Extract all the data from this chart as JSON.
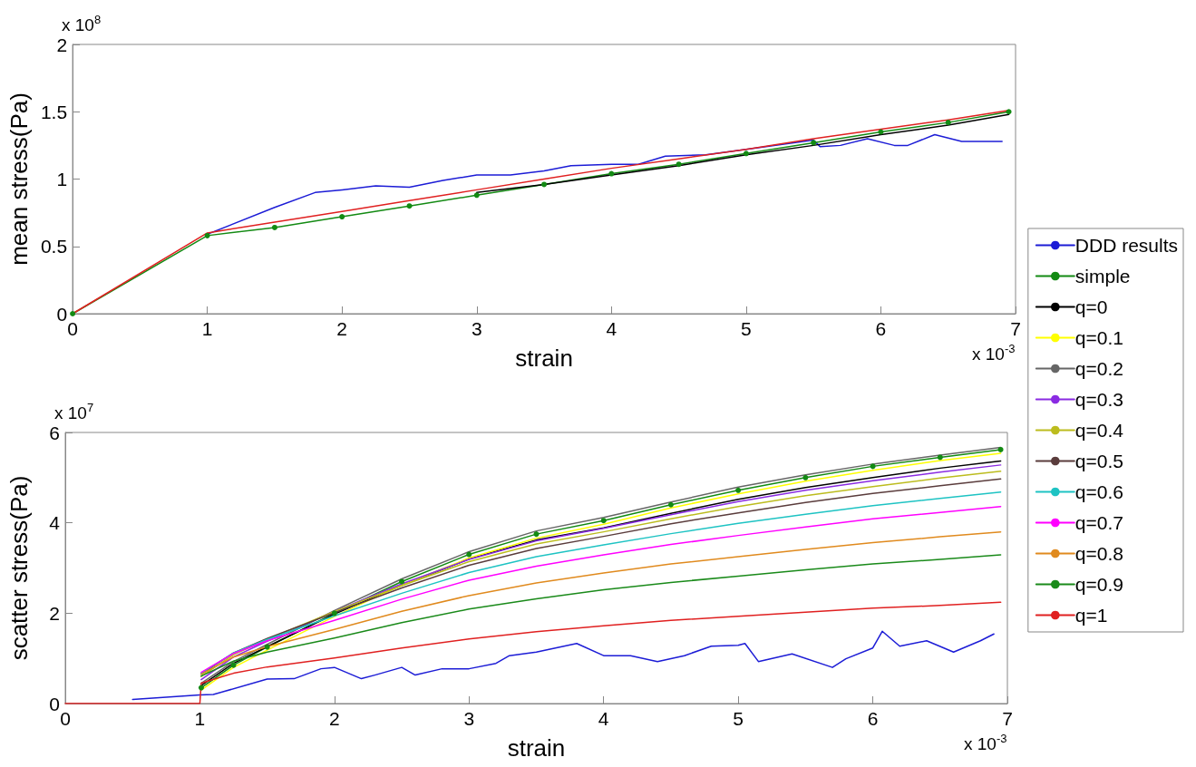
{
  "chart_data": [
    {
      "type": "line",
      "xlabel": "strain",
      "ylabel": "mean stress(Pa)",
      "annotations": [
        "x 10$^{8}$",
        "x 10$^{-3}$"
      ],
      "xlim": [
        0,
        7
      ],
      "xticks": [
        0,
        1,
        2,
        3,
        4,
        5,
        6,
        7
      ],
      "ylim": [
        0,
        2
      ],
      "yticks": [
        0,
        0.5,
        1,
        1.5,
        2
      ],
      "grid": false,
      "legend": "right",
      "marker": "none",
      "line_style": "solid",
      "x": [
        0,
        1,
        1.5,
        2,
        2.5,
        3,
        3.5,
        4,
        4.5,
        5,
        5.5,
        6,
        6.5,
        6.95
      ],
      "series": [
        {
          "name": "DDD results",
          "color": "#1c1cd6",
          "x": [
            1,
            1.5,
            1.8,
            2,
            2.25,
            2.5,
            2.75,
            3,
            3.25,
            3.5,
            3.7,
            4,
            4.2,
            4.4,
            4.7,
            5,
            5.5,
            5.55,
            5.7,
            5.9,
            6.1,
            6.2,
            6.4,
            6.6,
            6.9
          ],
          "values": [
            0.59,
            0.79,
            0.9,
            0.92,
            0.95,
            0.94,
            0.99,
            1.03,
            1.03,
            1.06,
            1.1,
            1.11,
            1.11,
            1.17,
            1.18,
            1.22,
            1.29,
            1.24,
            1.25,
            1.3,
            1.25,
            1.25,
            1.33,
            1.28,
            1.28
          ]
        },
        {
          "name": "simple",
          "color": "#138a13",
          "marker": "circle",
          "values": [
            0,
            0.58,
            0.64,
            0.72,
            0.8,
            0.88,
            0.96,
            1.04,
            1.11,
            1.19,
            1.27,
            1.35,
            1.42,
            1.5
          ]
        },
        {
          "name": "q=0",
          "color": "#000000",
          "values": [
            null,
            null,
            null,
            null,
            null,
            0.9,
            0.96,
            1.03,
            1.1,
            1.18,
            1.25,
            1.33,
            1.4,
            1.48
          ]
        },
        {
          "name": "q=0.1",
          "color": "#ffff00",
          "values": [
            null,
            null,
            null,
            null,
            null,
            null,
            null,
            null,
            null,
            null,
            null,
            null,
            null,
            null
          ]
        },
        {
          "name": "q=0.2",
          "color": "#666666",
          "values": [
            null,
            null,
            null,
            null,
            null,
            null,
            null,
            null,
            null,
            null,
            null,
            null,
            null,
            null
          ]
        },
        {
          "name": "q=0.3",
          "color": "#8a2be2",
          "values": [
            null,
            null,
            null,
            null,
            null,
            null,
            null,
            null,
            null,
            null,
            null,
            null,
            null,
            null
          ]
        },
        {
          "name": "q=0.4",
          "color": "#bcbc1e",
          "values": [
            null,
            null,
            null,
            null,
            null,
            null,
            null,
            null,
            null,
            null,
            null,
            null,
            null,
            null
          ]
        },
        {
          "name": "q=0.5",
          "color": "#5a3c3c",
          "values": [
            null,
            null,
            null,
            null,
            null,
            null,
            null,
            null,
            null,
            null,
            null,
            null,
            null,
            null
          ]
        },
        {
          "name": "q=0.6",
          "color": "#1ec3c3",
          "values": [
            null,
            null,
            null,
            null,
            null,
            null,
            null,
            null,
            null,
            null,
            null,
            null,
            null,
            null
          ]
        },
        {
          "name": "q=0.7",
          "color": "#ff00ff",
          "values": [
            null,
            null,
            null,
            null,
            null,
            null,
            null,
            null,
            null,
            null,
            null,
            null,
            null,
            null
          ]
        },
        {
          "name": "q=0.8",
          "color": "#e08a1e",
          "values": [
            null,
            null,
            null,
            null,
            null,
            null,
            null,
            null,
            null,
            null,
            null,
            null,
            null,
            null
          ]
        },
        {
          "name": "q=0.9",
          "color": "#1a8a1a",
          "values": [
            null,
            null,
            null,
            null,
            null,
            null,
            null,
            null,
            null,
            null,
            null,
            null,
            null,
            null
          ]
        },
        {
          "name": "q=1",
          "color": "#e02020",
          "values": [
            0,
            0.6,
            0.68,
            0.76,
            0.84,
            0.92,
            1.0,
            1.08,
            1.15,
            1.22,
            1.3,
            1.37,
            1.44,
            1.51
          ]
        }
      ]
    },
    {
      "type": "line",
      "xlabel": "strain",
      "ylabel": "scatter stress(Pa)",
      "annotations": [
        "x 10$^{7}$",
        "x 10$^{-3}$"
      ],
      "xlim": [
        0,
        7
      ],
      "xticks": [
        0,
        1,
        2,
        3,
        4,
        5,
        6,
        7
      ],
      "ylim": [
        0,
        6
      ],
      "yticks": [
        0,
        2,
        4,
        6
      ],
      "grid": false,
      "legend": false,
      "marker": "none",
      "line_style": "solid",
      "x": [
        0,
        1,
        1.01,
        1.25,
        1.5,
        2,
        2.5,
        3,
        3.5,
        4,
        4.5,
        5,
        5.5,
        6,
        6.5,
        6.95
      ],
      "series": [
        {
          "color": "#1c1cd6",
          "x": [
            0.5,
            1,
            1.1,
            1.5,
            1.7,
            1.9,
            2,
            2.2,
            2.3,
            2.5,
            2.6,
            2.8,
            3,
            3.2,
            3.3,
            3.5,
            3.8,
            4,
            4.2,
            4.4,
            4.6,
            4.8,
            5,
            5.05,
            5.15,
            5.4,
            5.7,
            5.8,
            6,
            6.07,
            6.2,
            6.4,
            6.6,
            6.8,
            6.9
          ],
          "values": [
            0.09,
            0.19,
            0.2,
            0.54,
            0.55,
            0.77,
            0.8,
            0.55,
            0.63,
            0.8,
            0.63,
            0.77,
            0.77,
            0.89,
            1.06,
            1.14,
            1.33,
            1.06,
            1.06,
            0.93,
            1.06,
            1.27,
            1.29,
            1.33,
            0.93,
            1.1,
            0.8,
            0.99,
            1.23,
            1.6,
            1.27,
            1.39,
            1.14,
            1.39,
            1.54
          ]
        },
        {
          "color": "#138a13",
          "marker": "circle",
          "values": [
            null,
            null,
            0.35,
            0.85,
            1.25,
            2.0,
            2.7,
            3.3,
            3.75,
            4.05,
            4.4,
            4.72,
            5.0,
            5.25,
            5.45,
            5.62
          ]
        },
        {
          "color": "#000000",
          "values": [
            null,
            null,
            0.4,
            0.89,
            1.26,
            1.98,
            2.62,
            3.2,
            3.62,
            3.89,
            4.21,
            4.52,
            4.78,
            5.0,
            5.21,
            5.37
          ]
        },
        {
          "color": "#ffff00",
          "values": [
            null,
            null,
            0.3,
            0.8,
            1.18,
            1.93,
            2.62,
            3.22,
            3.66,
            3.97,
            4.33,
            4.64,
            4.92,
            5.16,
            5.38,
            5.54
          ]
        },
        {
          "color": "#666666",
          "values": [
            null,
            null,
            0.45,
            0.93,
            1.31,
            2.06,
            2.76,
            3.36,
            3.82,
            4.12,
            4.46,
            4.79,
            5.06,
            5.3,
            5.5,
            5.67
          ]
        },
        {
          "color": "#8a2be2",
          "values": [
            null,
            null,
            0.53,
            1.03,
            1.38,
            2.04,
            2.65,
            3.19,
            3.6,
            3.88,
            4.18,
            4.47,
            4.72,
            4.93,
            5.12,
            5.28
          ]
        },
        {
          "color": "#bcbc1e",
          "values": [
            null,
            null,
            0.6,
            1.08,
            1.42,
            2.04,
            2.61,
            3.14,
            3.53,
            3.8,
            4.09,
            4.36,
            4.6,
            4.8,
            4.99,
            5.14
          ]
        },
        {
          "color": "#5a3c3c",
          "values": [
            null,
            null,
            0.65,
            1.12,
            1.44,
            2.01,
            2.56,
            3.06,
            3.43,
            3.7,
            3.98,
            4.22,
            4.45,
            4.65,
            4.82,
            4.97
          ]
        },
        {
          "color": "#1ec3c3",
          "values": [
            null,
            null,
            0.67,
            1.12,
            1.42,
            1.94,
            2.44,
            2.9,
            3.25,
            3.51,
            3.76,
            3.99,
            4.19,
            4.38,
            4.54,
            4.68
          ]
        },
        {
          "color": "#ff00ff",
          "values": [
            null,
            null,
            0.69,
            1.11,
            1.39,
            1.84,
            2.31,
            2.73,
            3.04,
            3.29,
            3.52,
            3.72,
            3.91,
            4.09,
            4.23,
            4.36
          ]
        },
        {
          "color": "#e08a1e",
          "values": [
            null,
            null,
            0.65,
            1.03,
            1.26,
            1.64,
            2.04,
            2.39,
            2.67,
            2.89,
            3.09,
            3.25,
            3.41,
            3.56,
            3.69,
            3.8
          ]
        },
        {
          "color": "#1a8a1a",
          "values": [
            null,
            null,
            0.61,
            0.94,
            1.14,
            1.45,
            1.79,
            2.09,
            2.32,
            2.52,
            2.68,
            2.82,
            2.96,
            3.09,
            3.19,
            3.29
          ]
        },
        {
          "color": "#e02020",
          "values": [
            0,
            0,
            0.45,
            0.67,
            0.81,
            1.01,
            1.23,
            1.43,
            1.59,
            1.72,
            1.84,
            1.93,
            2.02,
            2.11,
            2.17,
            2.24
          ]
        }
      ]
    }
  ]
}
